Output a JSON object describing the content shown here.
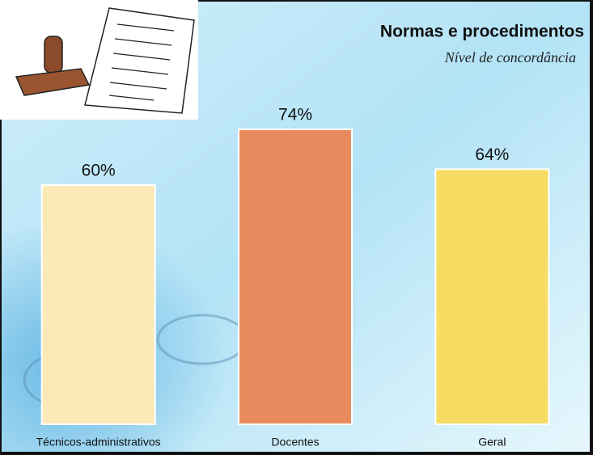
{
  "chart_data": {
    "type": "bar",
    "title": "Normas e procedimentos",
    "subtitle": "Nível de concordância",
    "categories": [
      "Técnicos-administrativos",
      "Docentes",
      "Geral"
    ],
    "values": [
      60,
      74,
      64
    ],
    "value_labels": [
      "60%",
      "74%",
      "64%"
    ],
    "colors": [
      "#fbe9b8",
      "#e98a5e",
      "#f6dc62"
    ]
  }
}
